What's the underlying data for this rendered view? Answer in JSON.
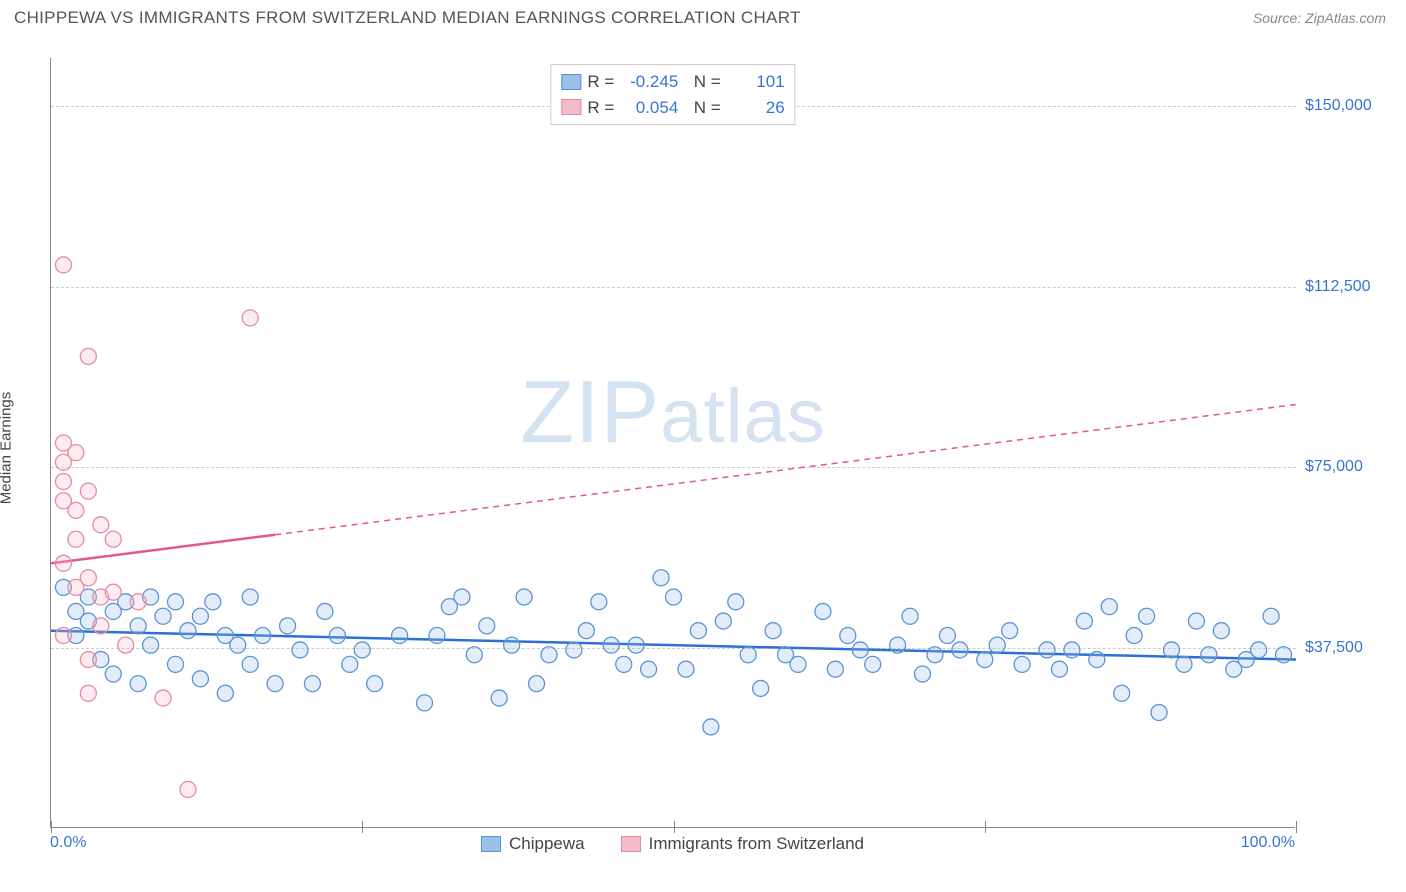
{
  "header": {
    "title": "CHIPPEWA VS IMMIGRANTS FROM SWITZERLAND MEDIAN EARNINGS CORRELATION CHART",
    "source": "Source: ZipAtlas.com"
  },
  "chart": {
    "type": "scatter-correlation",
    "ylabel": "Median Earnings",
    "xlim": [
      0,
      100
    ],
    "ylim": [
      0,
      160000
    ],
    "xticks": [
      0,
      25,
      50,
      75,
      100
    ],
    "xtick_labels_shown": {
      "left": "0.0%",
      "right": "100.0%"
    },
    "yticks": [
      37500,
      75000,
      112500,
      150000
    ],
    "ytick_labels": [
      "$37,500",
      "$75,000",
      "$112,500",
      "$150,000"
    ],
    "background_color": "#ffffff",
    "grid_color": "#cccccc",
    "axis_color": "#888888",
    "watermark": "ZIPatlas",
    "marker_radius": 8,
    "series": [
      {
        "name": "Chippewa",
        "color_fill": "#9bc0ea",
        "color_stroke": "#5a93d6",
        "R": "-0.245",
        "N": "101",
        "trend": {
          "y_at_0": 41000,
          "y_at_100": 35000,
          "solid_until_x": 100,
          "line_color": "#2f6fd1"
        },
        "points": [
          [
            1,
            50000
          ],
          [
            2,
            40000
          ],
          [
            2,
            45000
          ],
          [
            3,
            43000
          ],
          [
            3,
            48000
          ],
          [
            4,
            35000
          ],
          [
            5,
            32000
          ],
          [
            5,
            45000
          ],
          [
            6,
            47000
          ],
          [
            7,
            30000
          ],
          [
            7,
            42000
          ],
          [
            8,
            48000
          ],
          [
            8,
            38000
          ],
          [
            9,
            44000
          ],
          [
            10,
            47000
          ],
          [
            10,
            34000
          ],
          [
            11,
            41000
          ],
          [
            12,
            31000
          ],
          [
            12,
            44000
          ],
          [
            13,
            47000
          ],
          [
            14,
            40000
          ],
          [
            14,
            28000
          ],
          [
            15,
            38000
          ],
          [
            16,
            48000
          ],
          [
            16,
            34000
          ],
          [
            17,
            40000
          ],
          [
            18,
            30000
          ],
          [
            19,
            42000
          ],
          [
            20,
            37000
          ],
          [
            21,
            30000
          ],
          [
            22,
            45000
          ],
          [
            23,
            40000
          ],
          [
            24,
            34000
          ],
          [
            25,
            37000
          ],
          [
            26,
            30000
          ],
          [
            28,
            40000
          ],
          [
            30,
            26000
          ],
          [
            31,
            40000
          ],
          [
            32,
            46000
          ],
          [
            33,
            48000
          ],
          [
            34,
            36000
          ],
          [
            35,
            42000
          ],
          [
            36,
            27000
          ],
          [
            37,
            38000
          ],
          [
            38,
            48000
          ],
          [
            39,
            30000
          ],
          [
            40,
            36000
          ],
          [
            42,
            37000
          ],
          [
            43,
            41000
          ],
          [
            44,
            47000
          ],
          [
            45,
            38000
          ],
          [
            46,
            34000
          ],
          [
            47,
            38000
          ],
          [
            48,
            33000
          ],
          [
            49,
            52000
          ],
          [
            50,
            48000
          ],
          [
            51,
            33000
          ],
          [
            52,
            41000
          ],
          [
            53,
            21000
          ],
          [
            54,
            43000
          ],
          [
            55,
            47000
          ],
          [
            56,
            36000
          ],
          [
            57,
            29000
          ],
          [
            58,
            41000
          ],
          [
            59,
            36000
          ],
          [
            60,
            34000
          ],
          [
            62,
            45000
          ],
          [
            63,
            33000
          ],
          [
            64,
            40000
          ],
          [
            65,
            37000
          ],
          [
            66,
            34000
          ],
          [
            68,
            38000
          ],
          [
            69,
            44000
          ],
          [
            70,
            32000
          ],
          [
            71,
            36000
          ],
          [
            72,
            40000
          ],
          [
            73,
            37000
          ],
          [
            75,
            35000
          ],
          [
            76,
            38000
          ],
          [
            77,
            41000
          ],
          [
            78,
            34000
          ],
          [
            80,
            37000
          ],
          [
            81,
            33000
          ],
          [
            82,
            37000
          ],
          [
            83,
            43000
          ],
          [
            84,
            35000
          ],
          [
            85,
            46000
          ],
          [
            86,
            28000
          ],
          [
            87,
            40000
          ],
          [
            88,
            44000
          ],
          [
            89,
            24000
          ],
          [
            90,
            37000
          ],
          [
            91,
            34000
          ],
          [
            92,
            43000
          ],
          [
            93,
            36000
          ],
          [
            94,
            41000
          ],
          [
            95,
            33000
          ],
          [
            96,
            35000
          ],
          [
            97,
            37000
          ],
          [
            98,
            44000
          ],
          [
            99,
            36000
          ]
        ]
      },
      {
        "name": "Immigrants from Switzerland",
        "color_fill": "#f4bcc8",
        "color_stroke": "#e78aa2",
        "R": "0.054",
        "N": "26",
        "trend": {
          "y_at_0": 55000,
          "y_at_100": 88000,
          "solid_until_x": 18,
          "line_color": "#e45a7e"
        },
        "points": [
          [
            1,
            117000
          ],
          [
            1,
            80000
          ],
          [
            1,
            76000
          ],
          [
            1,
            72000
          ],
          [
            1,
            68000
          ],
          [
            1,
            55000
          ],
          [
            1,
            40000
          ],
          [
            2,
            60000
          ],
          [
            2,
            66000
          ],
          [
            2,
            50000
          ],
          [
            2,
            78000
          ],
          [
            3,
            98000
          ],
          [
            3,
            70000
          ],
          [
            3,
            52000
          ],
          [
            3,
            35000
          ],
          [
            3,
            28000
          ],
          [
            4,
            63000
          ],
          [
            4,
            48000
          ],
          [
            4,
            42000
          ],
          [
            5,
            60000
          ],
          [
            5,
            49000
          ],
          [
            6,
            38000
          ],
          [
            7,
            47000
          ],
          [
            9,
            27000
          ],
          [
            11,
            8000
          ],
          [
            16,
            106000
          ]
        ]
      }
    ],
    "legend_bottom": [
      {
        "label": "Chippewa",
        "fill": "#9bc0ea",
        "stroke": "#5a93d6"
      },
      {
        "label": "Immigrants from Switzerland",
        "fill": "#f4bcc8",
        "stroke": "#e78aa2"
      }
    ]
  }
}
